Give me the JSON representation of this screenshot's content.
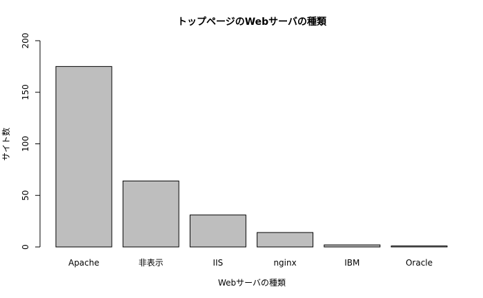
{
  "chart_data": {
    "type": "bar",
    "title": "トップページのWebサーバの種類",
    "xlabel": "Webサーバの種類",
    "ylabel": "サイト数",
    "categories": [
      "Apache",
      "非表示",
      "IIS",
      "nginx",
      "IBM",
      "Oracle"
    ],
    "values": [
      175,
      64,
      31,
      14,
      2,
      1
    ],
    "ylim": [
      0,
      200
    ],
    "yticks": [
      "0",
      "50",
      "100",
      "150",
      "200"
    ],
    "grid": false,
    "bar_color": "#bebebe"
  }
}
